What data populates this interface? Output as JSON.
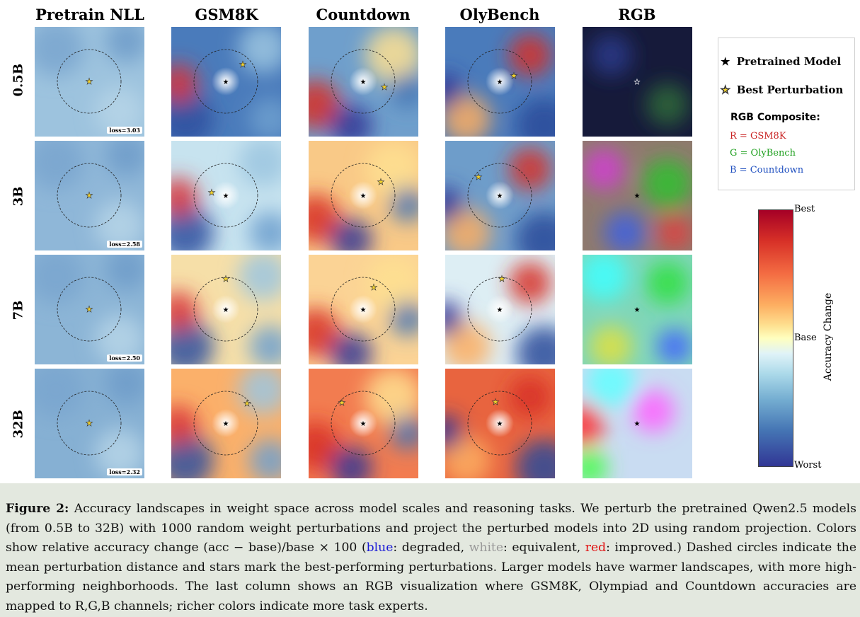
{
  "columns": [
    "Pretrain NLL",
    "GSM8K",
    "Countdown",
    "OlyBench",
    "RGB"
  ],
  "rows": [
    "0.5B",
    "3B",
    "7B",
    "32B"
  ],
  "losses": [
    "loss=3.03",
    "loss=2.58",
    "loss=2.50",
    "loss=2.32"
  ],
  "legend": {
    "pretrained": "Pretrained Model",
    "best": "Best Perturbation",
    "rgb_title": "RGB Composite:",
    "r": "R = GSM8K",
    "g": "G = OlyBench",
    "b": "B = Countdown"
  },
  "colorbar": {
    "top": "Best",
    "mid": "Base",
    "bottom": "Worst",
    "axis": "Accuracy Change"
  },
  "caption": {
    "label": "Figure 2:",
    "part1": " Accuracy landscapes in weight space across model scales and reasoning tasks. We perturb the pretrained Qwen2.5 models (from 0.5B to 32B) with 1000 random weight perturbations and project the perturbed models into 2D using random projection. Colors show relative accuracy change (acc − base)/base × 100 (",
    "blue": "blue",
    "part2": ": degraded, ",
    "white": "white",
    "part3": ": equivalent, ",
    "red": "red",
    "part4": ": improved.) Dashed circles indicate the mean perturbation distance and stars mark the best-performing perturbations. Larger models have warmer landscapes, with more high-performing neighborhoods. The last column shows an RGB visualization where GSM8K, Olympiad and Countdown accuracies are mapped to R,G,B channels; richer colors indicate more task experts."
  },
  "colors": {
    "worst": "#313695",
    "base": "#ffffbf",
    "best": "#a50026",
    "star": "#f2d22e"
  },
  "panel_fill": {
    "nll": [
      "#9dc3de",
      "#8fb7d8",
      "#8cb5d6",
      "#86b0d3"
    ],
    "gsm8k": [
      "#4a7bbb",
      "#c7e3ef",
      "#f6dfa8",
      "#fbb06a"
    ],
    "countdown": [
      "#6f9fcc",
      "#f9c987",
      "#fbd395",
      "#f27c50"
    ],
    "olybench": [
      "#4a7bbb",
      "#6e9dca",
      "#ddeef4",
      "#e8643f"
    ]
  }
}
